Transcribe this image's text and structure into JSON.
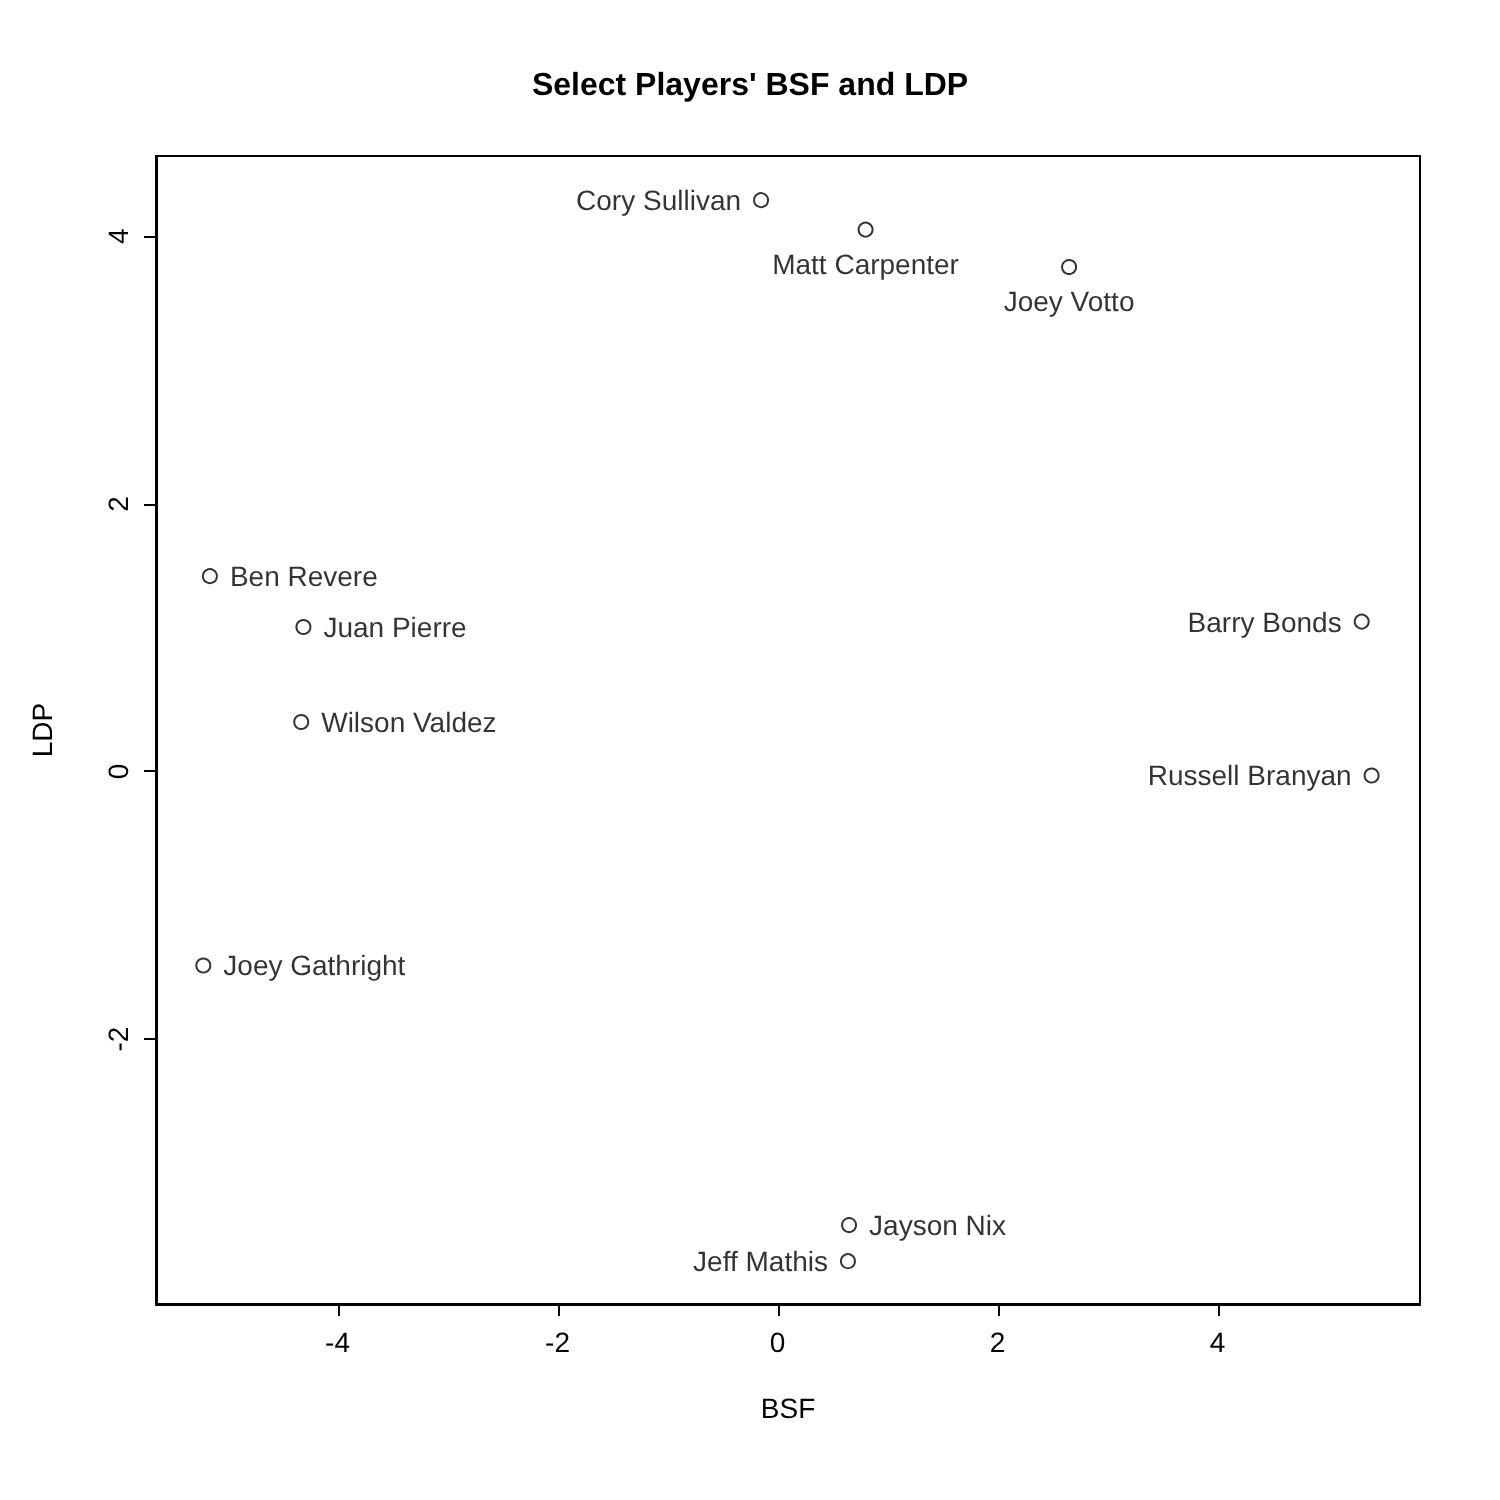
{
  "chart_data": {
    "type": "scatter",
    "title": "Select Players' BSF and LDP",
    "xlabel": "BSF",
    "ylabel": "LDP",
    "x": [
      -0.15,
      0.8,
      2.65,
      -5.16,
      -4.31,
      -4.33,
      5.31,
      5.4,
      -5.22,
      0.65,
      0.64
    ],
    "series": [
      {
        "color": "#000000",
        "values": [
          4.27,
          4.05,
          3.77,
          1.46,
          1.08,
          0.37,
          1.12,
          -0.03,
          -1.45,
          -3.39,
          -3.66
        ],
        "value_labels": [
          "Cory Sullivan",
          "Matt Carpenter",
          "Joey Votto",
          "Ben Revere",
          "Juan Pierre",
          "Wilson Valdez",
          "Barry Bonds",
          "Russell Branyan",
          "Joey Gathright",
          "Jayson Nix",
          "Jeff Mathis"
        ]
      }
    ],
    "xlim": [
      -5.65,
      5.84
    ],
    "ylim": [
      -3.98,
      4.6
    ],
    "xticks": [
      -4,
      -2,
      0,
      2,
      4
    ],
    "yticks": [
      -2,
      0,
      2,
      4
    ],
    "marker": "circle",
    "grid": false
  }
}
